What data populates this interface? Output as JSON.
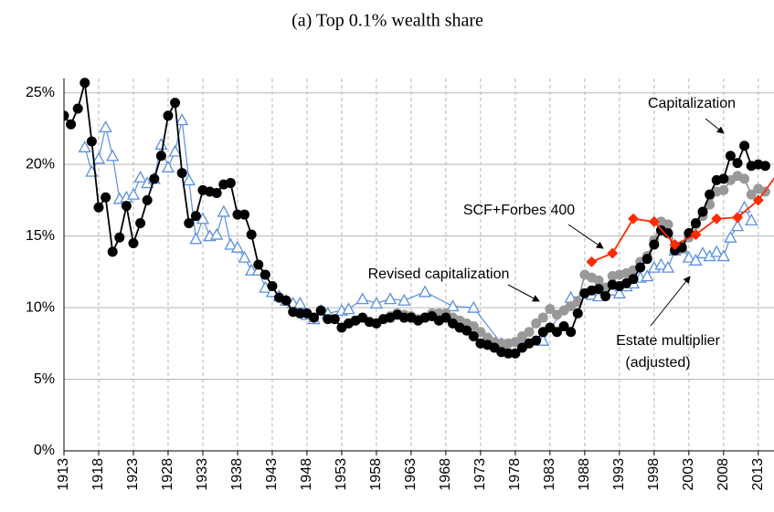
{
  "chart_data": {
    "type": "line",
    "title": "(a) Top 0.1% wealth share",
    "xlim": [
      1913,
      2015
    ],
    "ylim": [
      0,
      26
    ],
    "xticks": [
      1913,
      1918,
      1923,
      1928,
      1933,
      1938,
      1943,
      1948,
      1953,
      1958,
      1963,
      1968,
      1973,
      1978,
      1983,
      1988,
      1993,
      1998,
      2003,
      2008,
      2013
    ],
    "yticks": [
      {
        "value": 0,
        "label": "0%"
      },
      {
        "value": 5,
        "label": "5%"
      },
      {
        "value": 10,
        "label": "10%"
      },
      {
        "value": 15,
        "label": "15%"
      },
      {
        "value": 20,
        "label": "20%"
      },
      {
        "value": 25,
        "label": "25%"
      }
    ],
    "grid": true,
    "series": [
      {
        "name": "Estate multiplier (adjusted)",
        "color": "#5b8fe0",
        "marker": "triangle",
        "x": [
          1916,
          1917,
          1918,
          1919,
          1920,
          1921,
          1922,
          1923,
          1924,
          1925,
          1926,
          1927,
          1928,
          1929,
          1930,
          1931,
          1932,
          1933,
          1934,
          1935,
          1936,
          1937,
          1938,
          1939,
          1940,
          1941,
          1942,
          1943,
          1944,
          1945,
          1946,
          1947,
          1948,
          1949,
          1950,
          1951,
          1953,
          1954,
          1956,
          1958,
          1960,
          1962,
          1965,
          1969,
          1972,
          1976,
          1982,
          1986,
          1989,
          1990,
          1991,
          1992,
          1993,
          1994,
          1995,
          1996,
          1997,
          1998,
          1999,
          2000,
          2001,
          2002,
          2003,
          2004,
          2005,
          2006,
          2007,
          2008,
          2009,
          2010,
          2011,
          2012
        ],
        "values": [
          21.2,
          19.5,
          20.4,
          22.6,
          20.6,
          17.6,
          17.7,
          17.9,
          19.1,
          18.7,
          19.0,
          21.4,
          19.8,
          20.9,
          23.1,
          18.9,
          14.8,
          16.2,
          15.0,
          15.1,
          16.7,
          14.4,
          14.2,
          13.5,
          12.6,
          12.6,
          11.4,
          11.1,
          10.8,
          10.5,
          10.3,
          10.3,
          9.5,
          9.2,
          9.8,
          9.6,
          9.8,
          9.9,
          10.6,
          10.3,
          10.6,
          10.5,
          11.1,
          10.1,
          10.0,
          7.5,
          7.7,
          10.7,
          10.9,
          10.8,
          11.2,
          11.2,
          11.0,
          11.5,
          11.7,
          12.1,
          12.2,
          12.8,
          13.0,
          12.8,
          14.0,
          14.2,
          13.5,
          13.3,
          13.8,
          13.6,
          13.9,
          13.6,
          14.9,
          15.7,
          17.0,
          16.1
        ]
      },
      {
        "name": "Revised capitalization",
        "color": "#999999",
        "marker": "circle",
        "x": [
          1960,
          1961,
          1962,
          1963,
          1964,
          1965,
          1966,
          1967,
          1968,
          1969,
          1970,
          1971,
          1972,
          1973,
          1974,
          1975,
          1976,
          1977,
          1978,
          1979,
          1980,
          1981,
          1982,
          1983,
          1984,
          1985,
          1986,
          1987,
          1988,
          1989,
          1990,
          1991,
          1992,
          1993,
          1994,
          1995,
          1996,
          1997,
          1998,
          1999,
          2000,
          2001,
          2002,
          2003,
          2004,
          2005,
          2006,
          2007,
          2008,
          2009,
          2010,
          2011,
          2012,
          2013,
          2014
        ],
        "values": [
          9.4,
          9.6,
          9.5,
          9.4,
          9.2,
          9.3,
          9.6,
          9.6,
          9.6,
          9.3,
          9.1,
          8.9,
          8.7,
          8.3,
          7.9,
          7.6,
          7.5,
          7.5,
          7.6,
          8.0,
          8.3,
          8.9,
          9.3,
          9.9,
          9.5,
          9.8,
          10.1,
          10.4,
          12.3,
          12.1,
          11.9,
          11.4,
          12.2,
          12.3,
          12.4,
          12.6,
          13.2,
          13.6,
          14.7,
          16.0,
          15.8,
          14.3,
          14.1,
          14.9,
          15.8,
          16.4,
          17.2,
          18.1,
          18.2,
          18.9,
          19.2,
          19.0,
          17.9,
          18.3,
          18.1
        ]
      },
      {
        "name": "Capitalization",
        "color": "#000000",
        "marker": "circle",
        "x": [
          1913,
          1914,
          1915,
          1916,
          1917,
          1918,
          1919,
          1920,
          1921,
          1922,
          1923,
          1924,
          1925,
          1926,
          1927,
          1928,
          1929,
          1930,
          1931,
          1932,
          1933,
          1934,
          1935,
          1936,
          1937,
          1938,
          1939,
          1940,
          1941,
          1942,
          1943,
          1944,
          1945,
          1946,
          1947,
          1948,
          1949,
          1950,
          1951,
          1952,
          1953,
          1954,
          1955,
          1956,
          1957,
          1958,
          1959,
          1960,
          1961,
          1962,
          1963,
          1964,
          1965,
          1966,
          1967,
          1968,
          1969,
          1970,
          1971,
          1972,
          1973,
          1974,
          1975,
          1976,
          1977,
          1978,
          1979,
          1980,
          1981,
          1982,
          1983,
          1984,
          1985,
          1986,
          1987,
          1988,
          1989,
          1990,
          1991,
          1992,
          1993,
          1994,
          1995,
          1996,
          1997,
          1998,
          1999,
          2000,
          2001,
          2002,
          2003,
          2004,
          2005,
          2006,
          2007,
          2008,
          2009,
          2010,
          2011,
          2012,
          2013,
          2014
        ],
        "values": [
          23.4,
          22.8,
          23.9,
          25.7,
          21.6,
          17.0,
          17.7,
          13.9,
          14.9,
          17.1,
          14.5,
          15.9,
          17.5,
          19.0,
          20.6,
          23.4,
          24.3,
          19.4,
          15.9,
          16.4,
          18.2,
          18.1,
          18.0,
          18.6,
          18.7,
          16.5,
          16.5,
          15.1,
          13.0,
          12.3,
          11.5,
          10.7,
          10.5,
          9.7,
          9.6,
          9.6,
          9.3,
          9.8,
          9.2,
          9.2,
          8.6,
          8.9,
          9.1,
          9.3,
          9.0,
          8.9,
          9.2,
          9.3,
          9.5,
          9.3,
          9.3,
          9.1,
          9.3,
          9.4,
          9.1,
          9.3,
          8.9,
          8.6,
          8.4,
          8.0,
          7.5,
          7.4,
          7.2,
          6.9,
          6.8,
          6.8,
          7.2,
          7.5,
          7.7,
          8.3,
          8.6,
          8.3,
          8.7,
          8.3,
          9.6,
          11.0,
          11.2,
          11.3,
          10.8,
          11.6,
          11.5,
          11.7,
          12.0,
          12.8,
          13.4,
          14.4,
          15.4,
          15.2,
          14.0,
          14.2,
          15.2,
          15.9,
          16.7,
          17.9,
          18.9,
          19.0,
          20.6,
          20.1,
          21.3,
          19.9,
          20.0,
          19.9
        ]
      },
      {
        "name": "SCF+Forbes 400",
        "color": "#ff2a00",
        "marker": "diamond",
        "x": [
          1989,
          1992,
          1995,
          1998,
          2001,
          2004,
          2007,
          2010,
          2013,
          2016
        ],
        "values": [
          13.2,
          13.8,
          16.2,
          16.0,
          14.4,
          15.1,
          16.2,
          16.3,
          17.5,
          19.5
        ]
      }
    ],
    "annotations": [
      {
        "text": "Capitalization"
      },
      {
        "text": "SCF+Forbes 400"
      },
      {
        "text": "Revised capitalization"
      },
      {
        "text": "Estate multiplier"
      },
      {
        "text": "(adjusted)"
      }
    ]
  }
}
